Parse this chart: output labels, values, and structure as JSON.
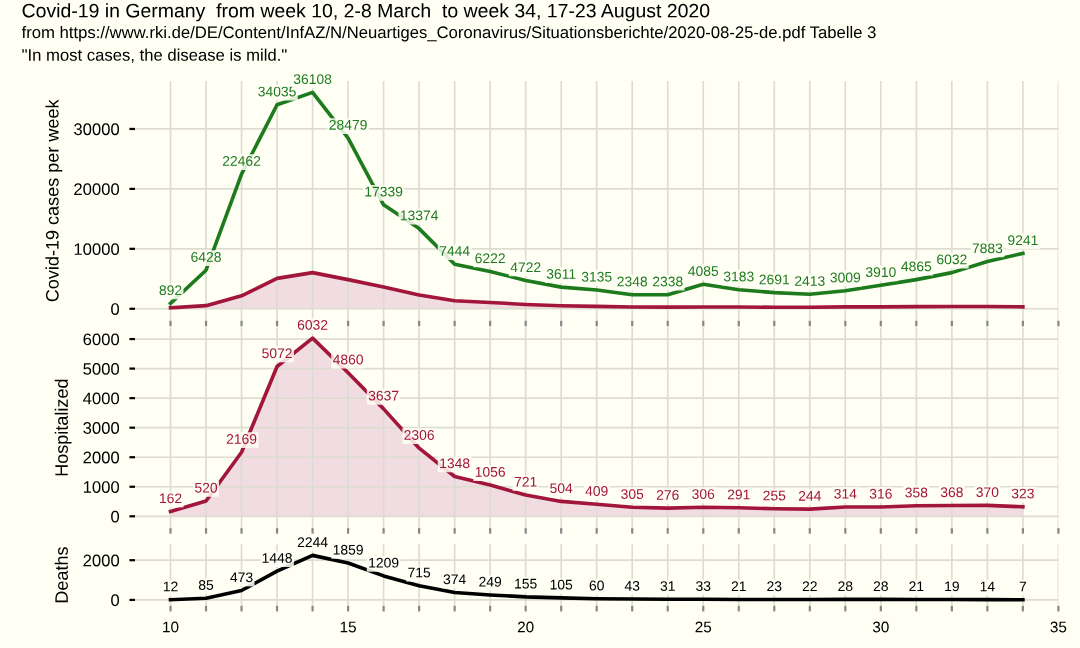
{
  "chart_data": [
    {
      "type": "line",
      "title": "Covid-19 in Germany  from week 10, 2-8 March  to week 34, 17-23 August 2020",
      "subtitle": "from https://www.rki.de/DE/Content/InfAZ/N/Neuartiges_Coronavirus/Situationsberichte/2020-08-25-de.pdf Tabelle 3",
      "annotations": [
        "\"In most cases, the disease is mild.\""
      ],
      "ylabel": "Covid-19 cases per week",
      "x": [
        10,
        11,
        12,
        13,
        14,
        15,
        16,
        17,
        18,
        19,
        20,
        21,
        22,
        23,
        24,
        25,
        26,
        27,
        28,
        29,
        30,
        31,
        32,
        33,
        34
      ],
      "series": [
        {
          "type": "area",
          "color": "#a3163c",
          "values": [
            162,
            520,
            2169,
            5072,
            6032,
            4860,
            3637,
            2306,
            1348,
            1056,
            721,
            504,
            409,
            305,
            276,
            306,
            291,
            255,
            244,
            314,
            316,
            358,
            368,
            370,
            323
          ]
        },
        {
          "type": "line",
          "color": "#1d7a1d",
          "values": [
            892,
            6428,
            22462,
            34035,
            36108,
            28479,
            17339,
            13374,
            7444,
            6222,
            4722,
            3611,
            3135,
            2348,
            2338,
            4085,
            3183,
            2691,
            2413,
            3009,
            3910,
            4865,
            6032,
            7883,
            9241
          ],
          "value_labels": [
            "892",
            "6428",
            "22462",
            "34035",
            "36108",
            "28479",
            "17339",
            "13374",
            "7444",
            "6222",
            "4722",
            "3611",
            "3135",
            "2348",
            "2338",
            "4085",
            "3183",
            "2691",
            "2413",
            "3009",
            "3910",
            "4865",
            "6032",
            "7883",
            "9241"
          ]
        }
      ],
      "xlim": [
        9,
        35
      ],
      "xticks": [
        {
          "value": 10,
          "label": null
        },
        {
          "value": 11,
          "label": null
        },
        {
          "value": 12,
          "label": null
        },
        {
          "value": 13,
          "label": null
        },
        {
          "value": 14,
          "label": null
        },
        {
          "value": 15,
          "label": null
        },
        {
          "value": 16,
          "label": null
        },
        {
          "value": 17,
          "label": null
        },
        {
          "value": 18,
          "label": null
        },
        {
          "value": 19,
          "label": null
        },
        {
          "value": 20,
          "label": null
        },
        {
          "value": 21,
          "label": null
        },
        {
          "value": 22,
          "label": null
        },
        {
          "value": 23,
          "label": null
        },
        {
          "value": 24,
          "label": null
        },
        {
          "value": 25,
          "label": null
        },
        {
          "value": 26,
          "label": null
        },
        {
          "value": 27,
          "label": null
        },
        {
          "value": 28,
          "label": null
        },
        {
          "value": 29,
          "label": null
        },
        {
          "value": 30,
          "label": null
        },
        {
          "value": 31,
          "label": null
        },
        {
          "value": 32,
          "label": null
        },
        {
          "value": 33,
          "label": null
        },
        {
          "value": 34,
          "label": null
        },
        {
          "value": 35,
          "label": null
        }
      ],
      "ylim": [
        -2000,
        38000
      ],
      "yticks": [
        0,
        10000,
        20000,
        30000
      ],
      "tick_labels": "y",
      "grid": true
    },
    {
      "type": "area",
      "ylabel": "Hospitalized",
      "x": [
        10,
        11,
        12,
        13,
        14,
        15,
        16,
        17,
        18,
        19,
        20,
        21,
        22,
        23,
        24,
        25,
        26,
        27,
        28,
        29,
        30,
        31,
        32,
        33,
        34
      ],
      "series": [
        {
          "color": "#a3163c",
          "values": [
            162,
            520,
            2169,
            5072,
            6032,
            4860,
            3637,
            2306,
            1348,
            1056,
            721,
            504,
            409,
            305,
            276,
            306,
            291,
            255,
            244,
            314,
            316,
            358,
            368,
            370,
            323
          ]
        }
      ],
      "data_labels": true,
      "xlim": [
        9,
        35
      ],
      "xticks": [
        {
          "value": 10,
          "label": null
        },
        {
          "value": 11,
          "label": null
        },
        {
          "value": 12,
          "label": null
        },
        {
          "value": 13,
          "label": null
        },
        {
          "value": 14,
          "label": null
        },
        {
          "value": 15,
          "label": null
        },
        {
          "value": 16,
          "label": null
        },
        {
          "value": 17,
          "label": null
        },
        {
          "value": 18,
          "label": null
        },
        {
          "value": 19,
          "label": null
        },
        {
          "value": 20,
          "label": null
        },
        {
          "value": 21,
          "label": null
        },
        {
          "value": 22,
          "label": null
        },
        {
          "value": 23,
          "label": null
        },
        {
          "value": 24,
          "label": null
        },
        {
          "value": 25,
          "label": null
        },
        {
          "value": 26,
          "label": null
        },
        {
          "value": 27,
          "label": null
        },
        {
          "value": 28,
          "label": null
        },
        {
          "value": 29,
          "label": null
        },
        {
          "value": 30,
          "label": null
        },
        {
          "value": 31,
          "label": null
        },
        {
          "value": 32,
          "label": null
        },
        {
          "value": 33,
          "label": null
        },
        {
          "value": 34,
          "label": null
        },
        {
          "value": 35,
          "label": null
        }
      ],
      "ylim": [
        -400,
        6400
      ],
      "yticks": [
        0,
        1000,
        2000,
        3000,
        4000,
        5000,
        6000
      ],
      "tick_labels": "y",
      "grid": true
    },
    {
      "type": "line",
      "ylabel": "Deaths",
      "x": [
        10,
        11,
        12,
        13,
        14,
        15,
        16,
        17,
        18,
        19,
        20,
        21,
        22,
        23,
        24,
        25,
        26,
        27,
        28,
        29,
        30,
        31,
        32,
        33,
        34
      ],
      "series": [
        {
          "color": "#000000",
          "values": [
            12,
            85,
            473,
            1448,
            2244,
            1859,
            1209,
            715,
            374,
            249,
            155,
            105,
            60,
            43,
            31,
            33,
            21,
            23,
            22,
            28,
            28,
            21,
            19,
            14,
            7
          ]
        }
      ],
      "data_labels": true,
      "xlim": [
        9,
        35
      ],
      "xticks": [
        10,
        {
          "value": 11,
          "label": null
        },
        {
          "value": 12,
          "label": null
        },
        {
          "value": 13,
          "label": null
        },
        {
          "value": 14,
          "label": null
        },
        15,
        {
          "value": 16,
          "label": null
        },
        {
          "value": 17,
          "label": null
        },
        {
          "value": 18,
          "label": null
        },
        {
          "value": 19,
          "label": null
        },
        20,
        {
          "value": 21,
          "label": null
        },
        {
          "value": 22,
          "label": null
        },
        {
          "value": 23,
          "label": null
        },
        {
          "value": 24,
          "label": null
        },
        25,
        {
          "value": 26,
          "label": null
        },
        {
          "value": 27,
          "label": null
        },
        {
          "value": 28,
          "label": null
        },
        {
          "value": 29,
          "label": null
        },
        30,
        {
          "value": 31,
          "label": null
        },
        {
          "value": 32,
          "label": null
        },
        {
          "value": 33,
          "label": null
        },
        {
          "value": 34,
          "label": null
        },
        35
      ],
      "ylim": [
        -300,
        2800
      ],
      "yticks": [
        0,
        2000
      ],
      "grid": true
    }
  ]
}
